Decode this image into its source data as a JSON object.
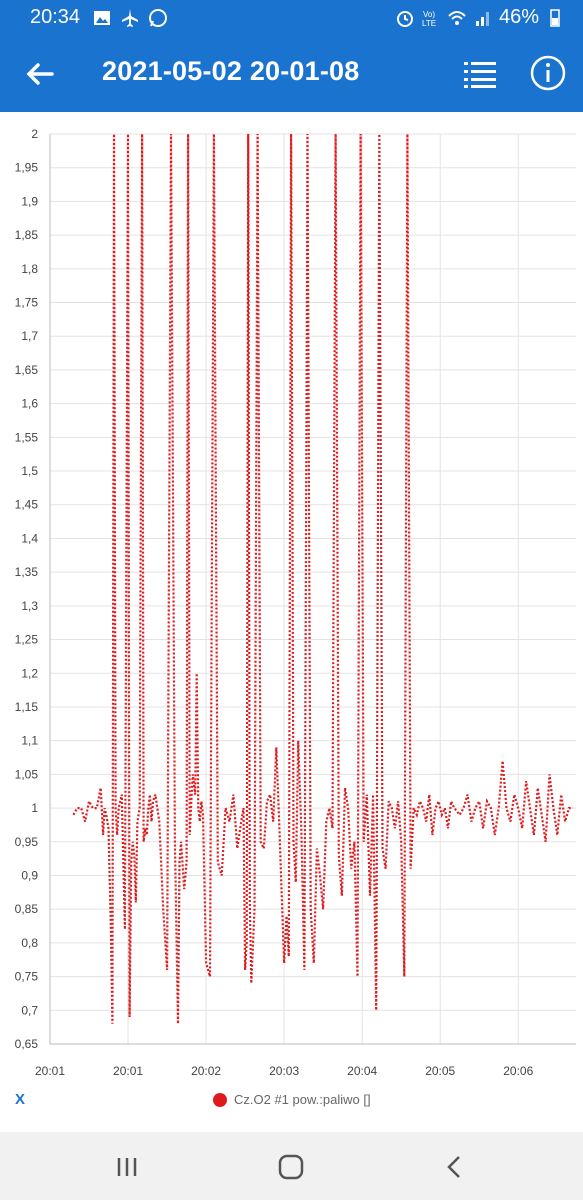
{
  "status_bar": {
    "time": "20:34",
    "battery": "46%",
    "left_icons": [
      "image-icon",
      "airplane-icon",
      "whatsapp-icon"
    ],
    "right_icons": [
      "alarm-icon",
      "volte-icon",
      "wifi-icon",
      "signal-icon",
      "battery-icon"
    ]
  },
  "app_bar": {
    "title": "2021-05-02 20-01-08",
    "background": "#1b73d0",
    "icons": [
      "back-arrow-icon",
      "list-icon",
      "info-icon"
    ]
  },
  "legend": {
    "toggle_label": "X",
    "series_label": "Cz.O2 #1 pow.:paliwo []"
  },
  "chart_data": {
    "type": "line",
    "line_style": "dotted",
    "series_color": "#e0191c",
    "grid": true,
    "ylim": [
      0.65,
      2.0
    ],
    "y_ticks": [
      "2",
      "1,95",
      "1,9",
      "1,85",
      "1,8",
      "1,75",
      "1,7",
      "1,65",
      "1,6",
      "1,55",
      "1,5",
      "1,45",
      "1,4",
      "1,35",
      "1,3",
      "1,25",
      "1,2",
      "1,15",
      "1,1",
      "1,05",
      "1",
      "0,95",
      "0,9",
      "0,85",
      "0,8",
      "0,75",
      "0,7",
      "0,65"
    ],
    "x_ticks": [
      "20:01",
      "20:01",
      "20:02",
      "20:03",
      "20:04",
      "20:05",
      "20:06"
    ],
    "xlim_minutes": [
      0,
      6.74
    ],
    "series": [
      {
        "name": "Cz.O2 #1 pow.:paliwo []",
        "x": [
          0.3,
          0.35,
          0.4,
          0.45,
          0.5,
          0.55,
          0.6,
          0.65,
          0.68,
          0.7,
          0.72,
          0.75,
          0.78,
          0.8,
          0.82,
          0.84,
          0.86,
          0.88,
          0.92,
          0.96,
          1.0,
          1.02,
          1.04,
          1.06,
          1.08,
          1.1,
          1.12,
          1.15,
          1.18,
          1.2,
          1.22,
          1.24,
          1.26,
          1.28,
          1.3,
          1.32,
          1.35,
          1.4,
          1.45,
          1.5,
          1.55,
          1.6,
          1.62,
          1.64,
          1.66,
          1.68,
          1.72,
          1.75,
          1.77,
          1.79,
          1.81,
          1.83,
          1.86,
          1.88,
          1.9,
          1.92,
          1.94,
          1.96,
          2.0,
          2.05,
          2.1,
          2.15,
          2.2,
          2.25,
          2.3,
          2.35,
          2.4,
          2.45,
          2.48,
          2.5,
          2.52,
          2.54,
          2.56,
          2.58,
          2.62,
          2.66,
          2.7,
          2.74,
          2.78,
          2.82,
          2.86,
          2.9,
          2.94,
          3.0,
          3.03,
          3.06,
          3.09,
          3.12,
          3.15,
          3.18,
          3.22,
          3.26,
          3.3,
          3.34,
          3.38,
          3.42,
          3.46,
          3.5,
          3.54,
          3.58,
          3.62,
          3.66,
          3.7,
          3.74,
          3.78,
          3.82,
          3.86,
          3.9,
          3.94,
          3.98,
          4.02,
          4.06,
          4.1,
          4.14,
          4.18,
          4.22,
          4.26,
          4.3,
          4.34,
          4.38,
          4.42,
          4.46,
          4.5,
          4.54,
          4.58,
          4.62,
          4.66,
          4.7,
          4.74,
          4.78,
          4.82,
          4.86,
          4.9,
          4.94,
          4.98,
          5.02,
          5.06,
          5.1,
          5.14,
          5.18,
          5.25,
          5.3,
          5.35,
          5.4,
          5.45,
          5.5,
          5.55,
          5.6,
          5.65,
          5.7,
          5.75,
          5.8,
          5.85,
          5.9,
          5.95,
          6.0,
          6.05,
          6.1,
          6.15,
          6.2,
          6.25,
          6.3,
          6.35,
          6.4,
          6.45,
          6.5,
          6.55,
          6.6,
          6.65,
          6.7
        ],
        "y": [
          0.99,
          1.0,
          1.0,
          0.98,
          1.01,
          1.0,
          1.0,
          1.03,
          0.96,
          1.0,
          0.99,
          0.97,
          0.82,
          0.68,
          2.0,
          1.0,
          0.96,
          1.0,
          1.02,
          0.82,
          2.0,
          0.69,
          0.92,
          0.95,
          0.93,
          0.86,
          0.98,
          1.0,
          2.0,
          0.95,
          0.97,
          0.96,
          1.0,
          1.02,
          0.98,
          1.01,
          1.02,
          0.98,
          0.85,
          0.76,
          2.0,
          0.95,
          0.82,
          0.68,
          0.92,
          0.95,
          0.88,
          0.92,
          2.0,
          0.96,
          1.01,
          1.05,
          1.02,
          1.2,
          1.0,
          0.98,
          1.01,
          0.99,
          0.77,
          0.75,
          2.0,
          0.92,
          0.9,
          1.0,
          0.98,
          1.02,
          0.94,
          0.98,
          1.0,
          0.76,
          0.8,
          2.0,
          0.86,
          0.74,
          0.85,
          2.0,
          0.95,
          0.94,
          1.01,
          1.02,
          0.98,
          1.09,
          0.97,
          0.77,
          0.84,
          0.78,
          2.0,
          0.95,
          0.89,
          1.1,
          0.97,
          0.76,
          2.0,
          0.85,
          0.77,
          0.94,
          0.9,
          0.85,
          0.98,
          1.0,
          0.97,
          2.0,
          0.93,
          0.87,
          1.03,
          1.0,
          0.91,
          0.95,
          0.75,
          2.0,
          0.95,
          1.02,
          0.87,
          1.02,
          0.7,
          2.0,
          0.94,
          0.91,
          1.01,
          1.0,
          0.97,
          1.01,
          0.95,
          0.75,
          2.0,
          0.91,
          1.0,
          0.99,
          1.01,
          1.0,
          0.98,
          1.02,
          0.96,
          1.0,
          1.01,
          0.99,
          1.0,
          0.97,
          1.01,
          1.0,
          0.99,
          1.0,
          1.02,
          0.98,
          1.0,
          1.01,
          0.97,
          1.01,
          1.0,
          0.96,
          1.0,
          1.07,
          1.0,
          0.98,
          1.02,
          1.0,
          0.97,
          1.04,
          1.0,
          0.96,
          1.03,
          0.99,
          0.95,
          1.05,
          1.0,
          0.96,
          1.02,
          0.98,
          1.0,
          1.0
        ]
      }
    ]
  }
}
